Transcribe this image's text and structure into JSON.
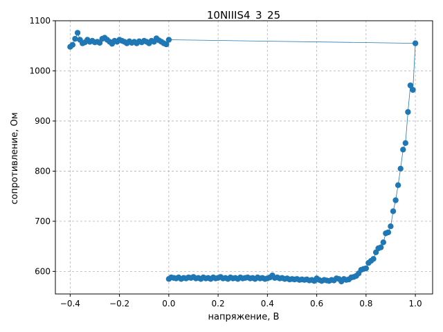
{
  "chart_data": {
    "type": "scatter",
    "title": "10NIIIS4_3_25",
    "xlabel": "напряжение, В",
    "ylabel": "сопротивление, Ом",
    "xlim": [
      -0.46,
      1.07
    ],
    "ylim": [
      555,
      1100
    ],
    "xticks": [
      -0.4,
      -0.2,
      0.0,
      0.2,
      0.4,
      0.6,
      0.8,
      1.0
    ],
    "xtick_labels": [
      "−0.4",
      "−0.2",
      "0.0",
      "0.2",
      "0.4",
      "0.6",
      "0.8",
      "1.0"
    ],
    "yticks": [
      600,
      700,
      800,
      900,
      1000,
      1100
    ],
    "ytick_labels": [
      "600",
      "700",
      "800",
      "900",
      "1000",
      "1100"
    ],
    "grid": true,
    "grid_style": "dashed",
    "legend": "none",
    "series": [
      {
        "color": "#1f77b4",
        "marker": "circle",
        "line": true,
        "points": [
          [
            0.0,
            585
          ],
          [
            0.01,
            588
          ],
          [
            0.02,
            587
          ],
          [
            0.03,
            586
          ],
          [
            0.04,
            588
          ],
          [
            0.05,
            585
          ],
          [
            0.06,
            587
          ],
          [
            0.07,
            586
          ],
          [
            0.08,
            588
          ],
          [
            0.09,
            587
          ],
          [
            0.1,
            589
          ],
          [
            0.11,
            586
          ],
          [
            0.12,
            587
          ],
          [
            0.13,
            585
          ],
          [
            0.14,
            588
          ],
          [
            0.15,
            586
          ],
          [
            0.16,
            587
          ],
          [
            0.17,
            585
          ],
          [
            0.18,
            588
          ],
          [
            0.19,
            586
          ],
          [
            0.2,
            587
          ],
          [
            0.21,
            589
          ],
          [
            0.22,
            586
          ],
          [
            0.23,
            587
          ],
          [
            0.24,
            585
          ],
          [
            0.25,
            588
          ],
          [
            0.26,
            586
          ],
          [
            0.27,
            587
          ],
          [
            0.28,
            585
          ],
          [
            0.29,
            588
          ],
          [
            0.3,
            586
          ],
          [
            0.31,
            587
          ],
          [
            0.32,
            588
          ],
          [
            0.33,
            586
          ],
          [
            0.34,
            587
          ],
          [
            0.35,
            585
          ],
          [
            0.36,
            588
          ],
          [
            0.37,
            586
          ],
          [
            0.38,
            587
          ],
          [
            0.39,
            585
          ],
          [
            0.4,
            586
          ],
          [
            0.41,
            588
          ],
          [
            0.42,
            592
          ],
          [
            0.43,
            587
          ],
          [
            0.44,
            588
          ],
          [
            0.45,
            586
          ],
          [
            0.46,
            587
          ],
          [
            0.47,
            585
          ],
          [
            0.48,
            586
          ],
          [
            0.49,
            584
          ],
          [
            0.5,
            585
          ],
          [
            0.51,
            584
          ],
          [
            0.52,
            585
          ],
          [
            0.53,
            583
          ],
          [
            0.54,
            584
          ],
          [
            0.55,
            583
          ],
          [
            0.56,
            584
          ],
          [
            0.57,
            582
          ],
          [
            0.58,
            583
          ],
          [
            0.59,
            581
          ],
          [
            0.6,
            586
          ],
          [
            0.61,
            583
          ],
          [
            0.62,
            581
          ],
          [
            0.63,
            583
          ],
          [
            0.64,
            582
          ],
          [
            0.65,
            581
          ],
          [
            0.66,
            583
          ],
          [
            0.67,
            582
          ],
          [
            0.68,
            586
          ],
          [
            0.69,
            585
          ],
          [
            0.7,
            580
          ],
          [
            0.71,
            585
          ],
          [
            0.72,
            583
          ],
          [
            0.73,
            584
          ],
          [
            0.74,
            588
          ],
          [
            0.75,
            589
          ],
          [
            0.76,
            591
          ],
          [
            0.77,
            596
          ],
          [
            0.78,
            603
          ],
          [
            0.79,
            605
          ],
          [
            0.8,
            606
          ],
          [
            0.81,
            617
          ],
          [
            0.82,
            621
          ],
          [
            0.83,
            625
          ],
          [
            0.84,
            638
          ],
          [
            0.85,
            646
          ],
          [
            0.86,
            648
          ],
          [
            0.87,
            658
          ],
          [
            0.88,
            676
          ],
          [
            0.89,
            678
          ],
          [
            0.9,
            690
          ],
          [
            0.91,
            720
          ],
          [
            0.92,
            742
          ],
          [
            0.93,
            772
          ],
          [
            0.94,
            805
          ],
          [
            0.95,
            843
          ],
          [
            0.96,
            856
          ],
          [
            0.97,
            918
          ],
          [
            0.98,
            971
          ],
          [
            0.99,
            962
          ],
          [
            1.0,
            1055
          ],
          [
            0.0,
            1062
          ],
          [
            -0.01,
            1053
          ],
          [
            -0.02,
            1055
          ],
          [
            -0.03,
            1058
          ],
          [
            -0.04,
            1061
          ],
          [
            -0.05,
            1065
          ],
          [
            -0.06,
            1058
          ],
          [
            -0.07,
            1060
          ],
          [
            -0.08,
            1055
          ],
          [
            -0.09,
            1058
          ],
          [
            -0.1,
            1060
          ],
          [
            -0.11,
            1057
          ],
          [
            -0.12,
            1059
          ],
          [
            -0.13,
            1055
          ],
          [
            -0.14,
            1058
          ],
          [
            -0.15,
            1056
          ],
          [
            -0.16,
            1059
          ],
          [
            -0.17,
            1055
          ],
          [
            -0.18,
            1058
          ],
          [
            -0.19,
            1060
          ],
          [
            -0.2,
            1062
          ],
          [
            -0.21,
            1058
          ],
          [
            -0.22,
            1060
          ],
          [
            -0.23,
            1054
          ],
          [
            -0.24,
            1058
          ],
          [
            -0.25,
            1062
          ],
          [
            -0.26,
            1066
          ],
          [
            -0.27,
            1064
          ],
          [
            -0.28,
            1056
          ],
          [
            -0.29,
            1058
          ],
          [
            -0.3,
            1057
          ],
          [
            -0.31,
            1060
          ],
          [
            -0.32,
            1058
          ],
          [
            -0.33,
            1062
          ],
          [
            -0.34,
            1057
          ],
          [
            -0.35,
            1055
          ],
          [
            -0.36,
            1062
          ],
          [
            -0.37,
            1076
          ],
          [
            -0.38,
            1064
          ],
          [
            -0.39,
            1052
          ],
          [
            -0.4,
            1048
          ]
        ]
      }
    ]
  }
}
